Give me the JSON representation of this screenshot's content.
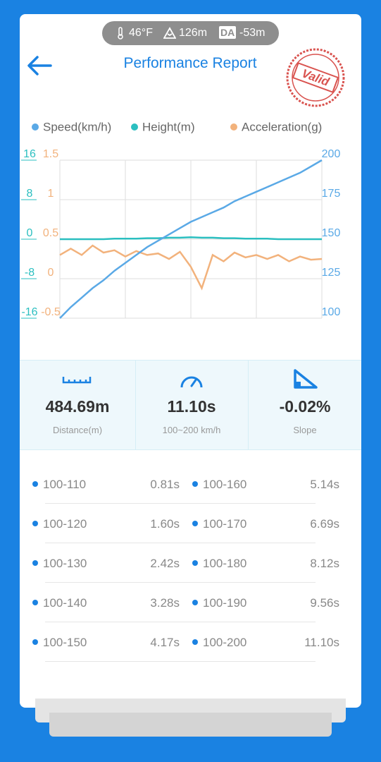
{
  "status": {
    "temperature": "46°F",
    "altitude": "126m",
    "da_badge": "DA",
    "density_altitude": "-53m"
  },
  "header": {
    "title": "Performance Report",
    "stamp": "Valid"
  },
  "chart_data": {
    "type": "line",
    "series": [
      {
        "name": "Speed(km/h)",
        "color": "#5aa9e6",
        "axis": "right",
        "ylim": [
          100,
          200
        ],
        "yticks": [
          100,
          125,
          150,
          175,
          200
        ],
        "values": [
          100,
          107,
          113,
          119,
          124,
          130,
          135,
          140,
          145,
          149,
          153,
          157,
          161,
          164,
          167,
          170,
          174,
          177,
          180,
          183,
          186,
          189,
          192,
          196,
          200
        ]
      },
      {
        "name": "Height(m)",
        "color": "#2bbfc0",
        "axis": "left-outer",
        "ylim": [
          -16,
          16
        ],
        "yticks": [
          -16,
          -8,
          0,
          8,
          16
        ],
        "values": [
          0,
          0,
          0,
          0,
          0,
          0.1,
          0.1,
          0.1,
          0.2,
          0.2,
          0.3,
          0.3,
          0.4,
          0.3,
          0.3,
          0.2,
          0.2,
          0.1,
          0.1,
          0.1,
          0,
          0,
          0,
          0,
          0
        ]
      },
      {
        "name": "Acceleration(g)",
        "color": "#f2b27c",
        "axis": "left-inner",
        "ylim": [
          -0.5,
          1.5
        ],
        "yticks": [
          -0.5,
          0,
          0.5,
          1,
          1.5
        ],
        "values": [
          0.3,
          0.38,
          0.3,
          0.42,
          0.33,
          0.36,
          0.28,
          0.35,
          0.3,
          0.32,
          0.25,
          0.34,
          0.15,
          -0.12,
          0.3,
          0.22,
          0.33,
          0.27,
          0.3,
          0.25,
          0.3,
          0.22,
          0.28,
          0.24,
          0.25
        ]
      }
    ],
    "grid": true
  },
  "stats": [
    {
      "value": "484.69m",
      "label": "Distance(m)"
    },
    {
      "value": "11.10s",
      "label": "100~200 km/h"
    },
    {
      "value": "-0.02%",
      "label": "Slope"
    }
  ],
  "splits": [
    [
      {
        "range": "100-110",
        "time": "0.81s"
      },
      {
        "range": "100-160",
        "time": "5.14s"
      }
    ],
    [
      {
        "range": "100-120",
        "time": "1.60s"
      },
      {
        "range": "100-170",
        "time": "6.69s"
      }
    ],
    [
      {
        "range": "100-130",
        "time": "2.42s"
      },
      {
        "range": "100-180",
        "time": "8.12s"
      }
    ],
    [
      {
        "range": "100-140",
        "time": "3.28s"
      },
      {
        "range": "100-190",
        "time": "9.56s"
      }
    ],
    [
      {
        "range": "100-150",
        "time": "4.17s"
      },
      {
        "range": "100-200",
        "time": "11.10s"
      }
    ]
  ]
}
